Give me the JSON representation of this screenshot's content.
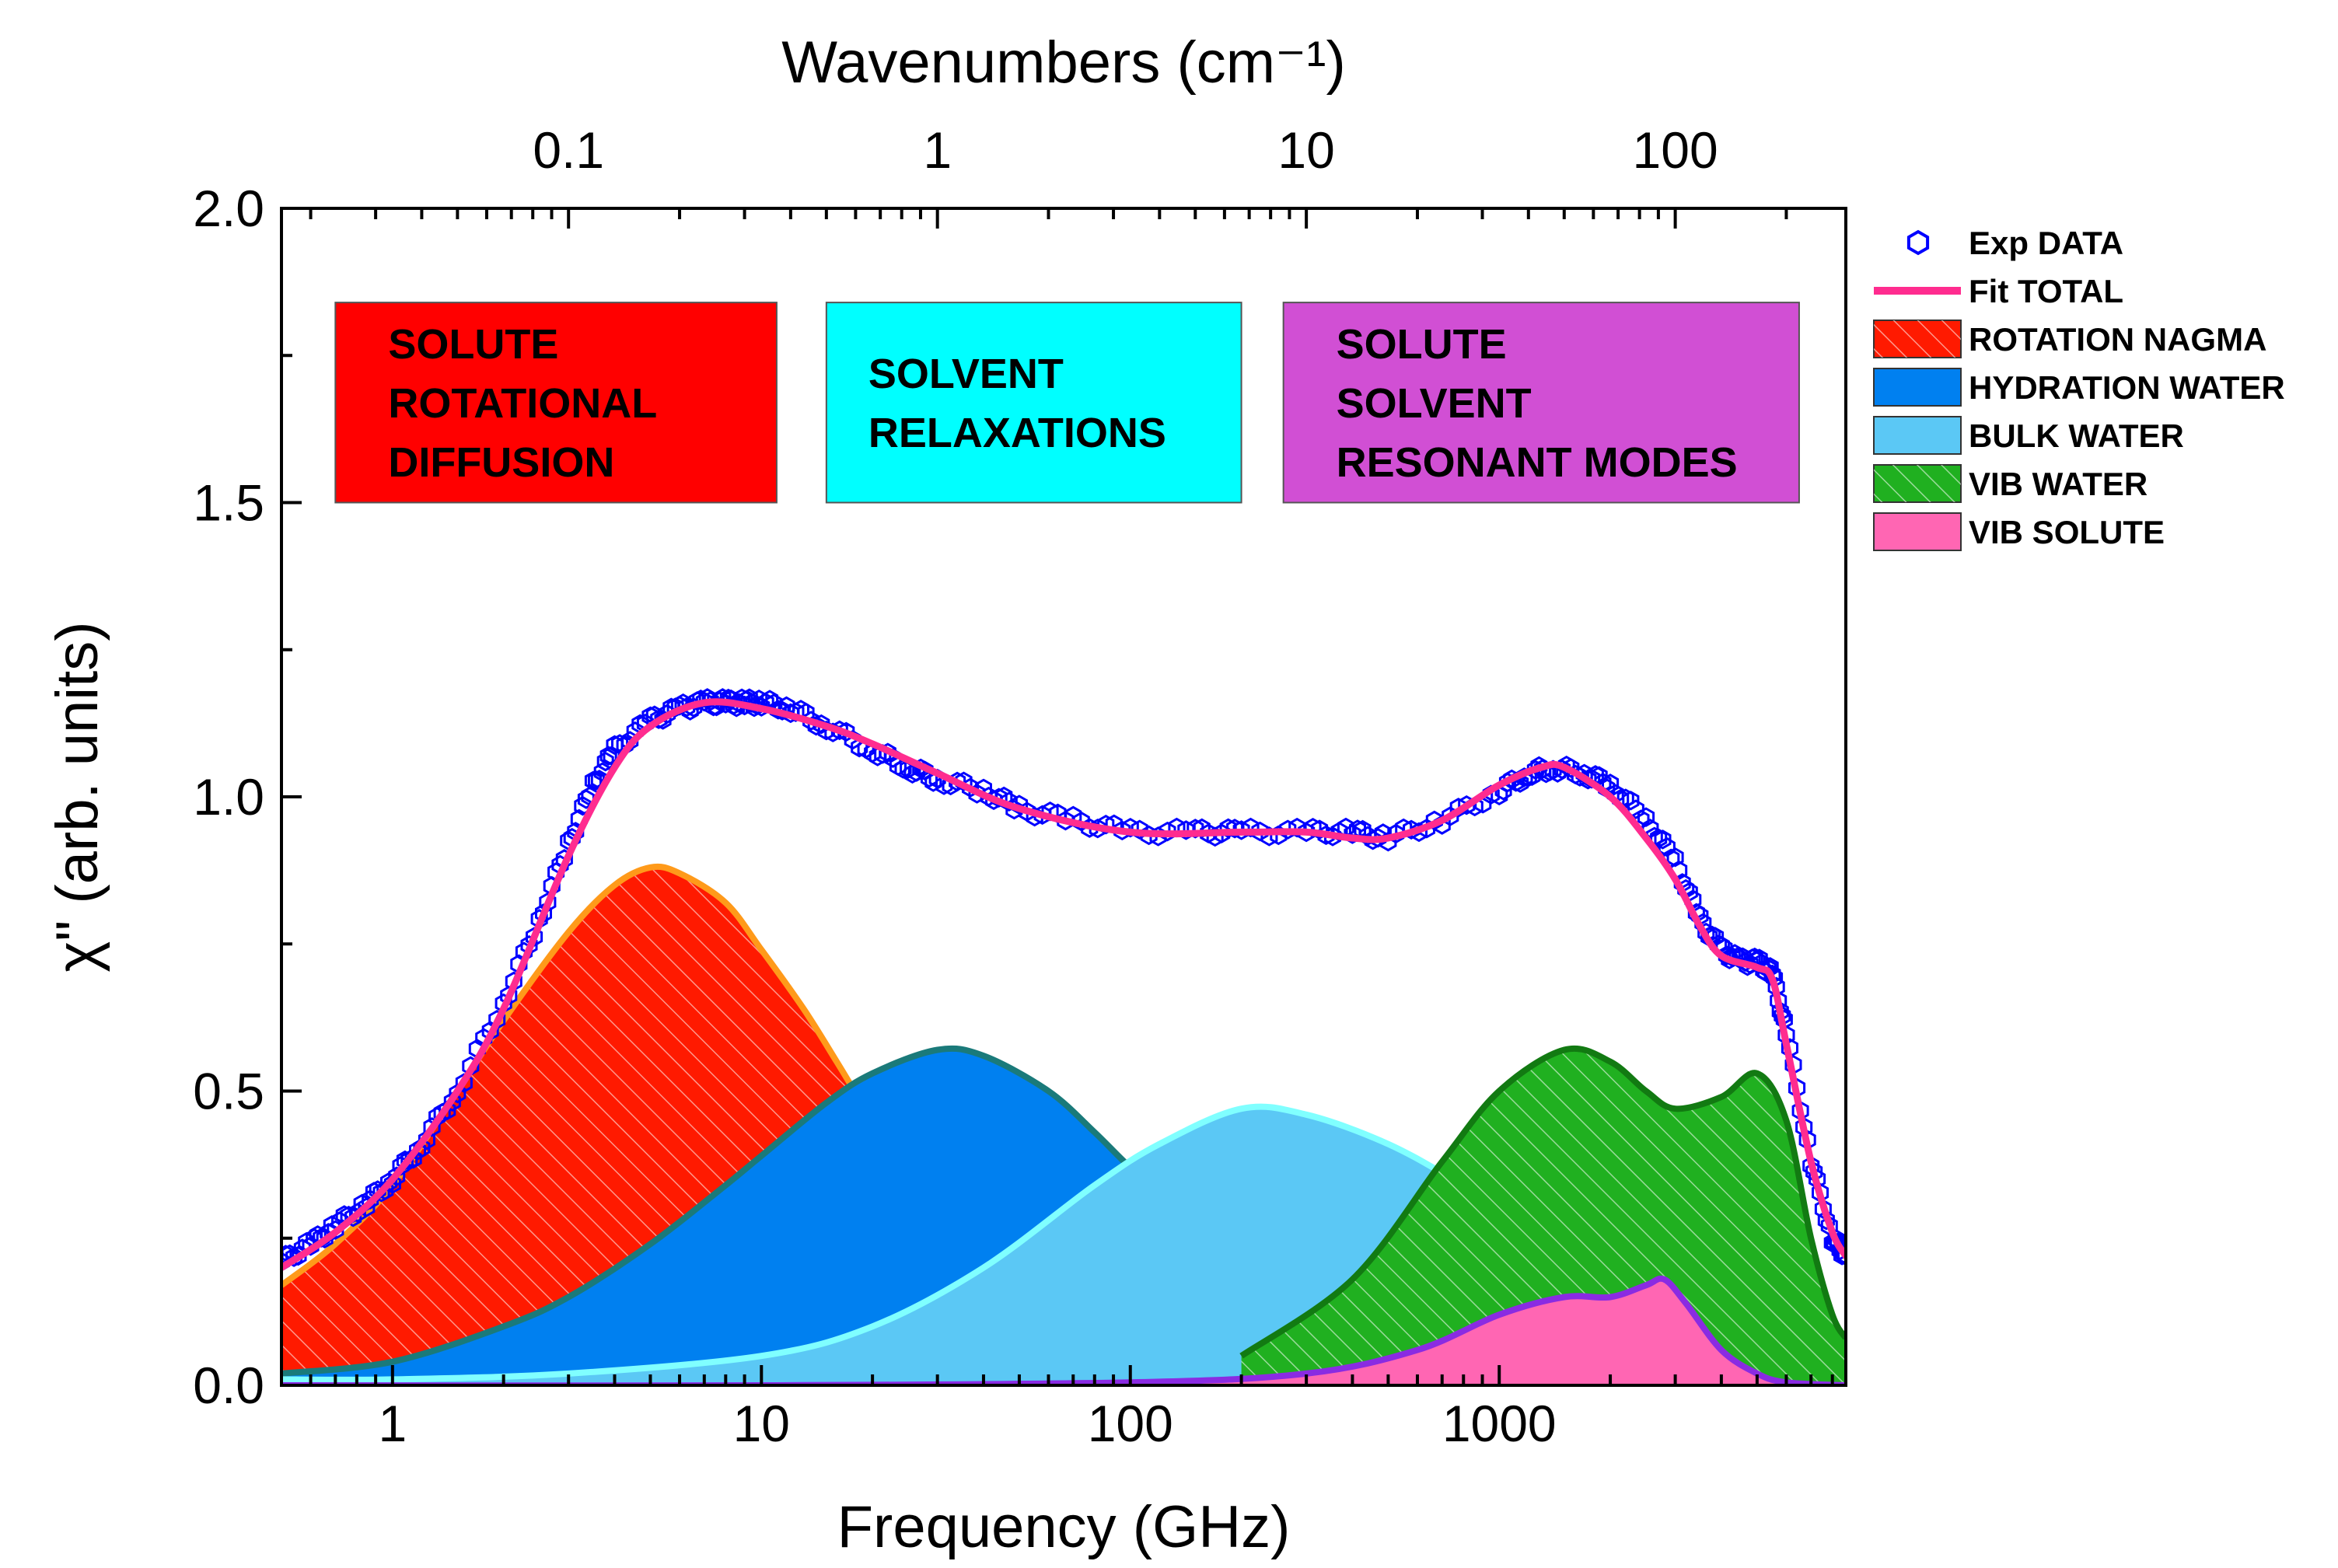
{
  "chart_data": {
    "type": "area",
    "title": "",
    "xlabel": "Frequency (GHz)",
    "ylabel": "χ\" (arb. units)",
    "top_xlabel": "Wavenumbers (cm⁻¹)",
    "x_scale": "log",
    "xlim": [
      0.5,
      8700
    ],
    "ylim": [
      0,
      2.0
    ],
    "grid": false,
    "legend_position": "outside-right",
    "x_tick_labels": [
      {
        "value": 1,
        "label": "1"
      },
      {
        "value": 10,
        "label": "10"
      },
      {
        "value": 100,
        "label": "100"
      },
      {
        "value": 1000,
        "label": "1000"
      }
    ],
    "top_tick_labels": [
      {
        "value": 0.1,
        "label": "0.1"
      },
      {
        "value": 1,
        "label": "1"
      },
      {
        "value": 10,
        "label": "10"
      },
      {
        "value": 100,
        "label": "100"
      }
    ],
    "y_tick_labels": [
      {
        "value": 0.0,
        "label": "0.0"
      },
      {
        "value": 0.5,
        "label": "0.5"
      },
      {
        "value": 1.0,
        "label": "1.0"
      },
      {
        "value": 1.5,
        "label": "1.5"
      },
      {
        "value": 2.0,
        "label": "2.0"
      }
    ],
    "regions": [
      {
        "lines": [
          "SOLUTE",
          "ROTATIONAL",
          "DIFFUSION"
        ],
        "x_range": [
          0.7,
          11
        ],
        "y_range": [
          1.5,
          1.84
        ],
        "color": "#ff0000"
      },
      {
        "lines": [
          "SOLVENT",
          "RELAXATIONS"
        ],
        "x_range": [
          15,
          200
        ],
        "y_range": [
          1.5,
          1.84
        ],
        "color": "#00ffff"
      },
      {
        "lines": [
          "SOLUTE",
          "SOLVENT",
          "RESONANT MODES"
        ],
        "x_range": [
          260,
          6500
        ],
        "y_range": [
          1.5,
          1.84
        ],
        "color": "#d14fd4"
      }
    ],
    "series": [
      {
        "name": "ROTATION NAGMA",
        "kind": "area",
        "fill": "#ff1a00",
        "stroke": "#ff9a1a",
        "hatch": true,
        "x": [
          0.5,
          0.7,
          1,
          1.5,
          2,
          3,
          4,
          5,
          6,
          8,
          10,
          13,
          16,
          20,
          25,
          30,
          40,
          60,
          100,
          150
        ],
        "y": [
          0.17,
          0.24,
          0.34,
          0.5,
          0.62,
          0.77,
          0.85,
          0.88,
          0.87,
          0.82,
          0.74,
          0.64,
          0.55,
          0.45,
          0.36,
          0.3,
          0.22,
          0.13,
          0.06,
          0.03
        ]
      },
      {
        "name": "HYDRATION WATER",
        "kind": "area",
        "fill": "#0080f0",
        "stroke": "#1a7a7a",
        "hatch": false,
        "x": [
          0.5,
          1,
          2,
          3,
          5,
          8,
          10,
          15,
          20,
          30,
          40,
          60,
          80,
          100,
          150,
          200,
          300,
          500,
          1000
        ],
        "y": [
          0.02,
          0.04,
          0.1,
          0.15,
          0.24,
          0.34,
          0.39,
          0.48,
          0.53,
          0.57,
          0.56,
          0.5,
          0.43,
          0.37,
          0.27,
          0.2,
          0.13,
          0.07,
          0.03
        ]
      },
      {
        "name": "BULK WATER",
        "kind": "area",
        "fill": "#5bc8f5",
        "stroke": "#80ffff",
        "hatch": false,
        "x": [
          0.5,
          1,
          3,
          10,
          20,
          40,
          80,
          120,
          200,
          300,
          500,
          800,
          1500,
          3000,
          5000,
          8700
        ],
        "y": [
          0.01,
          0.01,
          0.02,
          0.05,
          0.1,
          0.2,
          0.34,
          0.41,
          0.47,
          0.46,
          0.41,
          0.34,
          0.24,
          0.15,
          0.11,
          0.08
        ]
      },
      {
        "name": "VIB WATER",
        "kind": "area",
        "fill": "#20b020",
        "stroke": "#127a12",
        "hatch": true,
        "x": [
          200,
          400,
          700,
          1000,
          1500,
          2000,
          2500,
          3000,
          4000,
          5000,
          6000,
          7000,
          8000,
          8700
        ],
        "y": [
          0.05,
          0.18,
          0.38,
          0.5,
          0.57,
          0.55,
          0.5,
          0.47,
          0.49,
          0.53,
          0.45,
          0.25,
          0.12,
          0.08
        ]
      },
      {
        "name": "VIB SOLUTE",
        "kind": "area",
        "fill": "#ff66b3",
        "stroke": "#8a2be2",
        "hatch": false,
        "x": [
          0.5,
          10,
          100,
          300,
          600,
          1000,
          1500,
          2000,
          2500,
          2800,
          3200,
          4000,
          5000,
          6000,
          8700
        ],
        "y": [
          0,
          0,
          0.005,
          0.02,
          0.06,
          0.12,
          0.15,
          0.15,
          0.17,
          0.18,
          0.14,
          0.06,
          0.02,
          0.005,
          0
        ]
      },
      {
        "name": "Exp DATA",
        "kind": "points",
        "stroke": "#0000ff",
        "x": [
          0.5,
          0.6,
          0.7,
          0.85,
          1,
          1.2,
          1.5,
          2,
          2.5,
          3,
          3.5,
          4,
          5,
          6,
          7,
          8,
          9,
          10,
          12,
          15,
          20,
          25,
          30,
          40,
          50,
          70,
          100,
          150,
          200,
          300,
          400,
          500,
          700,
          1000,
          1200,
          1400,
          1700,
          2000,
          2500,
          3000,
          3500,
          4000,
          4500,
          5000,
          5500,
          6000,
          7000,
          8000,
          8700
        ],
        "y": [
          0.21,
          0.24,
          0.27,
          0.31,
          0.35,
          0.41,
          0.5,
          0.65,
          0.79,
          0.92,
          1.02,
          1.08,
          1.13,
          1.15,
          1.16,
          1.16,
          1.16,
          1.16,
          1.15,
          1.12,
          1.08,
          1.05,
          1.03,
          1.01,
          0.98,
          0.96,
          0.94,
          0.94,
          0.94,
          0.94,
          0.94,
          0.93,
          0.96,
          1.01,
          1.04,
          1.05,
          1.04,
          1.02,
          0.96,
          0.89,
          0.79,
          0.74,
          0.72,
          0.72,
          0.7,
          0.6,
          0.38,
          0.25,
          0.22
        ]
      },
      {
        "name": "Fit TOTAL",
        "kind": "line",
        "stroke": "#ff2c8f",
        "x": [
          0.5,
          0.7,
          1,
          1.5,
          2,
          3,
          4,
          5,
          7,
          10,
          15,
          20,
          30,
          50,
          100,
          200,
          300,
          400,
          500,
          700,
          1000,
          1300,
          1500,
          2000,
          2500,
          3000,
          3500,
          4000,
          5000,
          5500,
          6000,
          7000,
          8000,
          8700
        ],
        "y": [
          0.2,
          0.26,
          0.35,
          0.5,
          0.64,
          0.9,
          1.05,
          1.12,
          1.16,
          1.15,
          1.12,
          1.09,
          1.04,
          0.98,
          0.94,
          0.94,
          0.94,
          0.93,
          0.93,
          0.96,
          1.02,
          1.05,
          1.05,
          1.0,
          0.93,
          0.86,
          0.78,
          0.73,
          0.71,
          0.69,
          0.58,
          0.38,
          0.26,
          0.22
        ]
      }
    ],
    "legend": [
      {
        "label": "Exp DATA",
        "kind": "points",
        "color": "#0000ff"
      },
      {
        "label": "Fit TOTAL",
        "kind": "line",
        "color": "#ff2c8f"
      },
      {
        "label": "ROTATION NAGMA",
        "kind": "patch",
        "color": "#ff1a00",
        "hatch": true
      },
      {
        "label": "HYDRATION WATER",
        "kind": "patch",
        "color": "#0080f0",
        "hatch": false
      },
      {
        "label": "BULK WATER",
        "kind": "patch",
        "color": "#5bc8f5",
        "hatch": false
      },
      {
        "label": "VIB WATER",
        "kind": "patch",
        "color": "#20b020",
        "hatch": true
      },
      {
        "label": "VIB SOLUTE",
        "kind": "patch",
        "color": "#ff66b3",
        "hatch": false
      }
    ]
  }
}
